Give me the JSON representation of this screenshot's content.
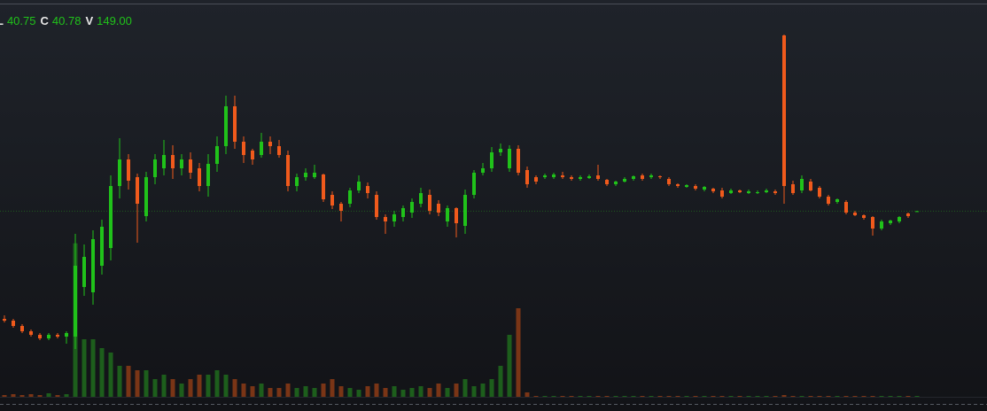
{
  "chart_data": {
    "type": "candlestick",
    "legend": [
      {
        "key": "L",
        "value": 40.75
      },
      {
        "key": "C",
        "value": 40.78
      },
      {
        "key": "V",
        "value": 149,
        "value_label": "149.00"
      }
    ],
    "up_color": "#20c21a",
    "down_color": "#f05a1c",
    "volume_up_color": "#1d5e1c",
    "volume_down_color": "#7a3516",
    "ylim": [
      29.5,
      52.7
    ],
    "volume_lim": [
      0,
      30000
    ],
    "open": [
      34.7,
      34.6,
      34.3,
      34.0,
      33.8,
      33.6,
      33.8,
      33.7,
      33.7,
      36.5,
      36.2,
      37.7,
      38.7,
      42.2,
      43.7,
      42.7,
      40.5,
      42.7,
      43.2,
      43.95,
      43.2,
      43.7,
      43.2,
      42.2,
      43.45,
      44.45,
      46.7,
      44.7,
      44.2,
      43.95,
      44.7,
      44.45,
      43.95,
      42.2,
      42.7,
      42.7,
      42.85,
      41.7,
      41.2,
      41.2,
      41.95,
      42.2,
      41.7,
      40.45,
      40.2,
      40.45,
      40.7,
      41.2,
      41.7,
      41.2,
      40.2,
      40.95,
      39.95,
      41.7,
      42.95,
      43.2,
      44.1,
      43.2,
      44.3,
      43.1,
      42.7,
      42.7,
      42.7,
      42.8,
      42.7,
      42.6,
      42.65,
      42.8,
      42.55,
      42.3,
      42.45,
      42.6,
      42.8,
      42.7,
      42.75,
      42.6,
      42.3,
      42.15,
      42.2,
      42.0,
      42.05,
      41.95,
      41.8,
      41.95,
      41.8,
      41.8,
      41.85,
      41.9,
      50.7,
      42.3,
      41.95,
      42.45,
      42.1,
      41.6,
      41.3,
      41.3,
      40.7,
      40.55,
      40.45,
      39.8,
      40.1,
      40.2,
      40.65,
      40.76
    ],
    "high": [
      34.9,
      34.7,
      34.4,
      34.1,
      33.9,
      33.9,
      33.9,
      34.0,
      39.5,
      38.9,
      39.7,
      40.3,
      42.8,
      44.9,
      44.0,
      42.9,
      43.0,
      44.0,
      44.8,
      44.5,
      44.0,
      44.1,
      43.5,
      44.0,
      45.0,
      47.3,
      47.3,
      45.0,
      44.3,
      45.2,
      45.0,
      44.8,
      44.2,
      42.9,
      43.2,
      43.4,
      42.9,
      41.9,
      41.3,
      42.1,
      42.8,
      42.4,
      41.9,
      40.6,
      40.8,
      41.1,
      41.5,
      42.1,
      42.0,
      41.4,
      41.1,
      41.0,
      42.0,
      43.1,
      43.5,
      44.4,
      44.6,
      44.5,
      44.5,
      43.3,
      42.8,
      42.9,
      42.95,
      43.0,
      42.8,
      42.8,
      42.85,
      43.4,
      42.6,
      42.5,
      42.7,
      42.8,
      42.9,
      42.9,
      42.8,
      42.7,
      42.35,
      42.3,
      42.3,
      42.2,
      42.1,
      42.1,
      42.05,
      42.0,
      42.0,
      41.95,
      42.05,
      42.0,
      50.75,
      42.5,
      42.8,
      42.6,
      42.2,
      41.7,
      41.5,
      41.4,
      40.8,
      40.6,
      40.5,
      40.3,
      40.3,
      40.5,
      40.7,
      40.8
    ],
    "low": [
      34.5,
      34.2,
      33.9,
      33.7,
      33.5,
      33.5,
      33.6,
      33.3,
      33.0,
      36.0,
      35.5,
      37.2,
      38.0,
      41.5,
      42.0,
      39.0,
      40.2,
      42.3,
      42.8,
      42.6,
      42.8,
      42.6,
      41.9,
      41.6,
      43.0,
      44.0,
      44.3,
      43.5,
      43.4,
      43.8,
      44.0,
      43.8,
      41.9,
      41.9,
      42.5,
      42.6,
      41.3,
      40.9,
      40.2,
      41.0,
      41.8,
      41.5,
      40.3,
      39.5,
      39.9,
      40.2,
      40.4,
      41.0,
      40.6,
      40.5,
      39.9,
      39.3,
      39.5,
      41.5,
      42.8,
      43.0,
      43.9,
      43.0,
      42.8,
      42.1,
      42.3,
      42.6,
      42.6,
      42.6,
      42.5,
      42.5,
      42.6,
      42.5,
      42.2,
      42.2,
      42.4,
      42.5,
      42.5,
      42.6,
      42.6,
      42.2,
      42.1,
      42.1,
      41.95,
      41.9,
      41.8,
      41.5,
      41.75,
      41.8,
      41.75,
      41.75,
      41.8,
      41.7,
      41.2,
      41.7,
      41.8,
      41.9,
      41.5,
      41.1,
      41.2,
      40.6,
      40.5,
      40.3,
      39.4,
      39.7,
      40.0,
      40.1,
      40.4,
      40.75
    ],
    "close": [
      34.6,
      34.3,
      34.0,
      33.8,
      33.6,
      33.8,
      33.7,
      33.9,
      37.7,
      38.2,
      39.2,
      39.9,
      42.2,
      43.7,
      42.5,
      41.2,
      42.7,
      43.7,
      43.95,
      43.2,
      43.7,
      42.95,
      42.2,
      43.45,
      44.45,
      46.7,
      44.7,
      43.95,
      43.7,
      44.7,
      44.45,
      43.95,
      42.2,
      42.7,
      42.95,
      42.95,
      41.45,
      41.1,
      40.8,
      41.95,
      42.45,
      41.8,
      40.45,
      40.2,
      40.6,
      40.95,
      41.3,
      41.8,
      40.8,
      40.7,
      40.95,
      40.1,
      41.7,
      42.95,
      43.2,
      44.1,
      44.3,
      44.3,
      42.95,
      42.3,
      42.45,
      42.8,
      42.85,
      42.7,
      42.6,
      42.7,
      42.75,
      42.6,
      42.3,
      42.45,
      42.6,
      42.75,
      42.6,
      42.8,
      42.7,
      42.3,
      42.2,
      42.25,
      42.05,
      42.15,
      41.9,
      41.6,
      41.95,
      41.85,
      41.9,
      41.85,
      41.95,
      41.8,
      42.2,
      41.8,
      42.6,
      41.95,
      41.6,
      41.2,
      41.45,
      40.7,
      40.55,
      40.4,
      39.8,
      40.2,
      40.25,
      40.45,
      40.5,
      40.78
    ],
    "volume": [
      300,
      450,
      300,
      450,
      300,
      600,
      300,
      450,
      26000,
      9750,
      9750,
      8250,
      7500,
      5250,
      5250,
      4500,
      4500,
      3000,
      3750,
      3000,
      2250,
      3000,
      3750,
      3750,
      4500,
      3750,
      3000,
      2250,
      1800,
      2250,
      1500,
      1500,
      2250,
      1500,
      1800,
      1500,
      2250,
      3000,
      1800,
      1500,
      1200,
      1800,
      2250,
      1500,
      1800,
      1200,
      1500,
      1800,
      1500,
      2250,
      1500,
      2250,
      3000,
      1800,
      2250,
      3000,
      5250,
      10500,
      15000,
      750,
      150,
      150,
      150,
      150,
      150,
      150,
      150,
      150,
      150,
      150,
      150,
      150,
      150,
      150,
      150,
      150,
      150,
      150,
      150,
      150,
      150,
      150,
      150,
      150,
      150,
      150,
      150,
      150,
      300,
      150,
      150,
      150,
      150,
      150,
      150,
      150,
      150,
      150,
      150,
      150,
      150,
      150,
      150,
      149
    ]
  }
}
